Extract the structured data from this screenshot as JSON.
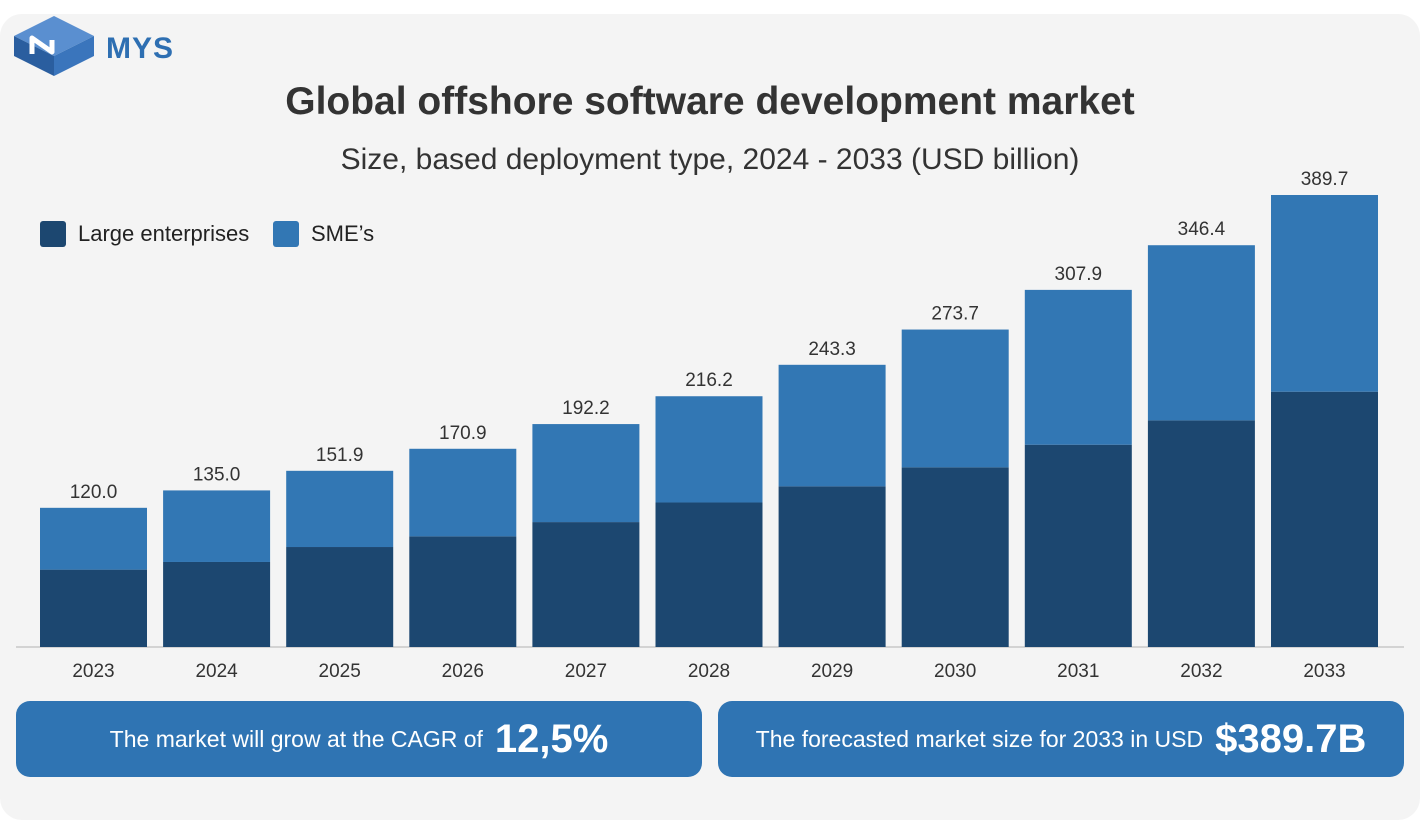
{
  "brand": {
    "name": "MYS",
    "logo_color": "#2e6fb2"
  },
  "header": {
    "title": "Global offshore software development market",
    "subtitle": "Size, based deployment type, 2024 - 2033 (USD billion)"
  },
  "legend": [
    {
      "label": "Large enterprises",
      "color": "#1c4770"
    },
    {
      "label": "SME’s",
      "color": "#3277b4"
    }
  ],
  "chart_data": {
    "type": "bar",
    "stacked": true,
    "categories": [
      "2023",
      "2024",
      "2025",
      "2026",
      "2027",
      "2028",
      "2029",
      "2030",
      "2031",
      "2032",
      "2033"
    ],
    "series": [
      {
        "name": "Large enterprises",
        "color": "#1c4770",
        "values": [
          66.7,
          73.3,
          86.2,
          95.4,
          107.7,
          124.6,
          138.5,
          154.9,
          174.4,
          195.4,
          220.1
        ]
      },
      {
        "name": "SME’s",
        "color": "#3277b4",
        "values": [
          53.3,
          61.7,
          65.7,
          75.5,
          84.5,
          91.6,
          104.8,
          118.8,
          133.5,
          151.0,
          169.6
        ]
      }
    ],
    "totals": [
      "120.0",
      "135.0",
      "151.9",
      "170.9",
      "192.2",
      "216.2",
      "243.3",
      "273.7",
      "307.9",
      "346.4",
      "389.7"
    ],
    "ylim": [
      0,
      389.7
    ],
    "grid": false,
    "legend_position": "top-left"
  },
  "callouts": {
    "cagr": {
      "text": "The market will grow at the CAGR of",
      "value": "12,5%"
    },
    "forecast": {
      "text": "The forecasted market size for 2033 in USD",
      "value": "$389.7B"
    }
  }
}
